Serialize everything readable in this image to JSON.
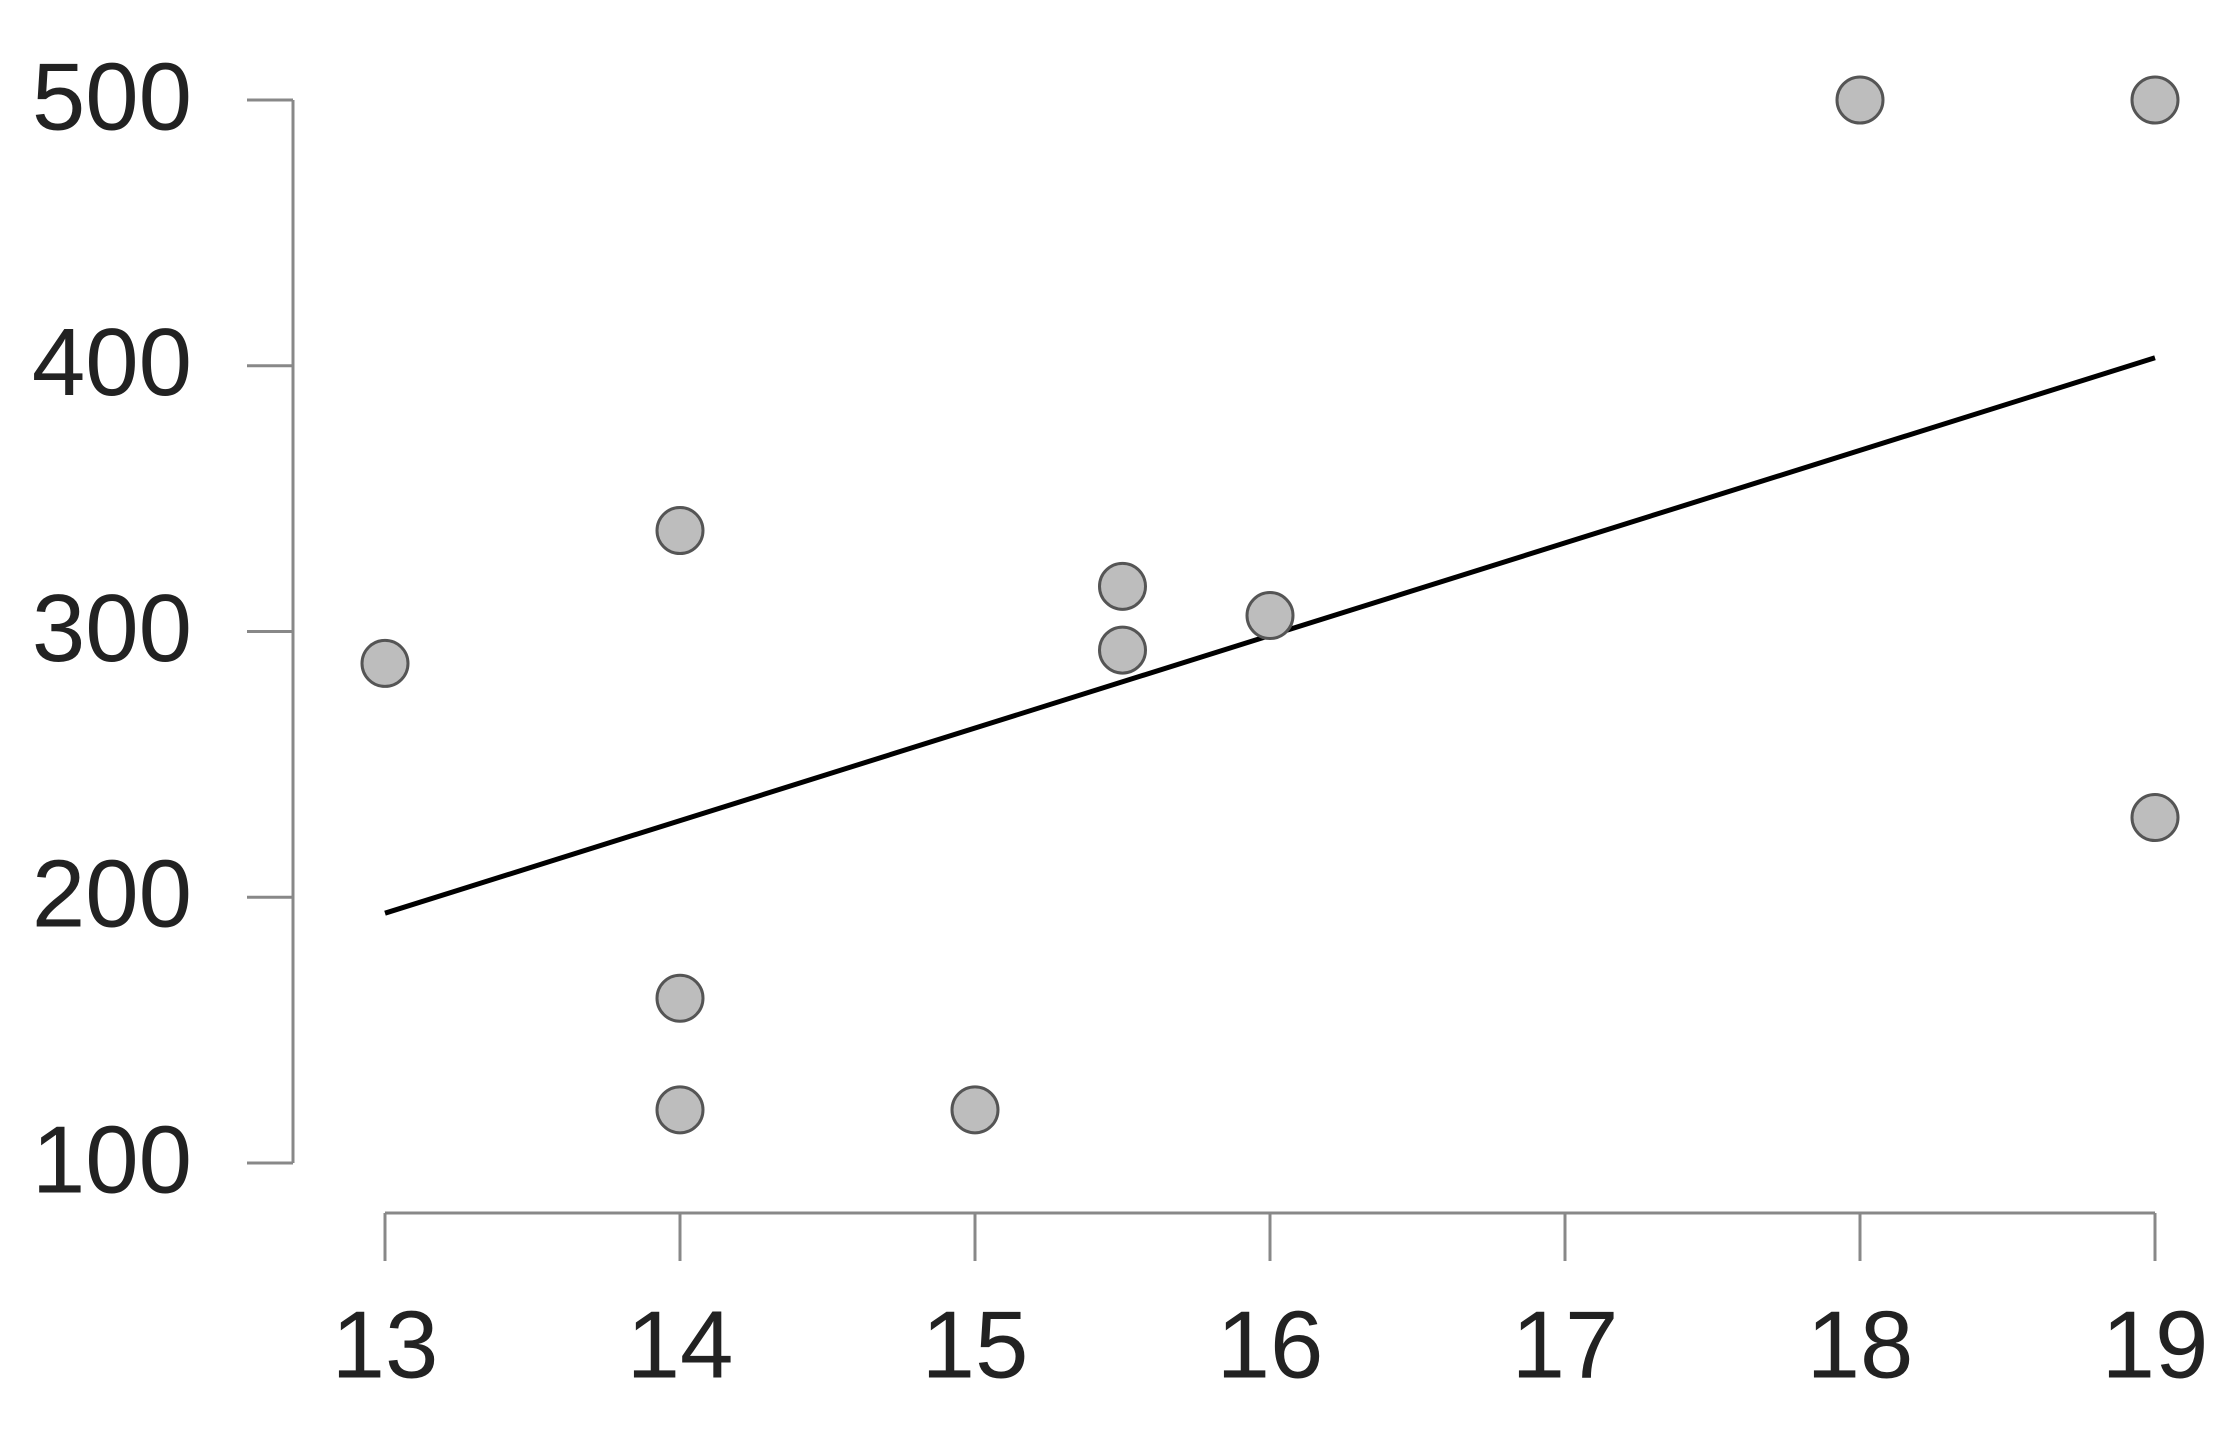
{
  "chart_data": {
    "type": "scatter",
    "x": [
      13,
      14,
      14,
      14,
      15,
      15.5,
      15.5,
      16,
      18,
      19,
      19
    ],
    "values": [
      288,
      338,
      162,
      120,
      120,
      317,
      293,
      306,
      500,
      500,
      230
    ],
    "color": "#bdbdbd",
    "trend": {
      "x": [
        13,
        19
      ],
      "values": [
        194,
        403
      ],
      "color": "#000000"
    },
    "xlim": [
      13,
      19
    ],
    "xticks": [
      13,
      14,
      15,
      16,
      17,
      18,
      19
    ],
    "ylim": [
      100,
      500
    ],
    "yticks": [
      100,
      200,
      300,
      400,
      500
    ],
    "grid": false
  }
}
